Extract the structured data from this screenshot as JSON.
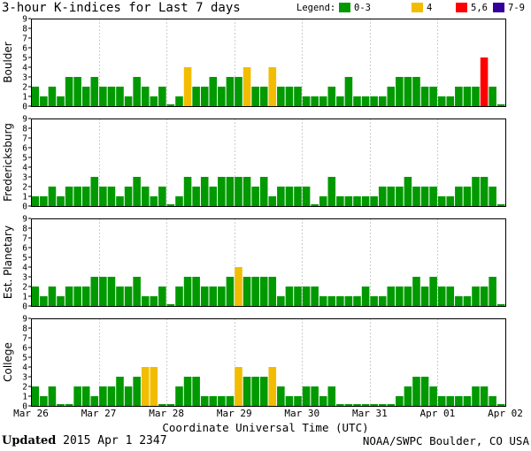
{
  "title": "3-hour K-indices for Last 7 days",
  "legend": {
    "label": "Legend:",
    "items": [
      {
        "label": "0-3",
        "color": "#009900"
      },
      {
        "label": "4",
        "color": "#f2bd00"
      },
      {
        "label": "5,6",
        "color": "#ff0000"
      },
      {
        "label": "7-9",
        "color": "#330099"
      }
    ]
  },
  "chart_data": {
    "type": "bar",
    "xlabel": "Coordinate Universal Time (UTC)",
    "x_ticks": [
      "Mar 26",
      "Mar 27",
      "Mar 28",
      "Mar 29",
      "Mar 30",
      "Mar 31",
      "Apr 01",
      "Apr 02"
    ],
    "ylim": [
      0,
      9
    ],
    "y_ticks": [
      "0",
      "1",
      "2",
      "3",
      "4",
      "5",
      "6",
      "7",
      "8",
      "9"
    ],
    "panels": [
      {
        "name": "Boulder",
        "values": [
          2,
          1,
          2,
          1,
          3,
          3,
          2,
          3,
          2,
          2,
          2,
          1,
          3,
          2,
          1,
          2,
          0,
          1,
          4,
          2,
          2,
          3,
          2,
          3,
          3,
          4,
          2,
          2,
          4,
          2,
          2,
          2,
          1,
          1,
          1,
          2,
          1,
          3,
          1,
          1,
          1,
          1,
          2,
          3,
          3,
          3,
          2,
          2,
          1,
          1,
          2,
          2,
          2,
          5,
          2,
          0
        ]
      },
      {
        "name": "Fredericksburg",
        "values": [
          1,
          1,
          2,
          1,
          2,
          2,
          2,
          3,
          2,
          2,
          1,
          2,
          3,
          2,
          1,
          2,
          0,
          1,
          3,
          2,
          3,
          2,
          3,
          3,
          3,
          3,
          2,
          3,
          1,
          2,
          2,
          2,
          2,
          0,
          1,
          3,
          1,
          1,
          1,
          1,
          1,
          2,
          2,
          2,
          3,
          2,
          2,
          2,
          1,
          1,
          2,
          2,
          3,
          3,
          2,
          0
        ]
      },
      {
        "name": "Est. Planetary",
        "values": [
          2,
          1,
          2,
          1,
          2,
          2,
          2,
          3,
          3,
          3,
          2,
          2,
          3,
          1,
          1,
          2,
          0,
          2,
          3,
          3,
          2,
          2,
          2,
          3,
          4,
          3,
          3,
          3,
          3,
          1,
          2,
          2,
          2,
          2,
          1,
          1,
          1,
          1,
          1,
          2,
          1,
          1,
          2,
          2,
          2,
          3,
          2,
          3,
          2,
          2,
          1,
          1,
          2,
          2,
          3,
          0
        ]
      },
      {
        "name": "College",
        "values": [
          2,
          1,
          2,
          0,
          0,
          2,
          2,
          1,
          2,
          2,
          3,
          2,
          3,
          4,
          4,
          0,
          0,
          2,
          3,
          3,
          1,
          1,
          1,
          1,
          4,
          3,
          3,
          3,
          4,
          2,
          1,
          1,
          2,
          2,
          1,
          2,
          0,
          0,
          0,
          0,
          0,
          0,
          0,
          1,
          2,
          3,
          3,
          2,
          1,
          1,
          1,
          1,
          2,
          2,
          1,
          0
        ]
      }
    ]
  },
  "footer": {
    "updated_label": "Updated",
    "updated_value": "2015 Apr  1 2347",
    "source": "NOAA/SWPC Boulder, CO USA"
  }
}
